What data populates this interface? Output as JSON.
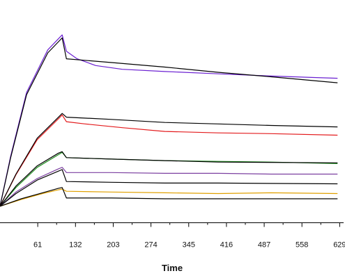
{
  "chart_data": {
    "type": "line",
    "title": "",
    "xlabel": "Time",
    "ylabel": "",
    "xlim": [
      -10,
      639
    ],
    "ylim": [
      0,
      260
    ],
    "xticks": [
      61,
      132,
      203,
      274,
      345,
      416,
      487,
      558,
      629
    ],
    "grid": false,
    "legend": "none",
    "series": [
      {
        "color": "#6a1fd1",
        "points": [
          [
            -10,
            3
          ],
          [
            10,
            70
          ],
          [
            40,
            155
          ],
          [
            80,
            212
          ],
          [
            107,
            232
          ],
          [
            115,
            210
          ],
          [
            135,
            200
          ],
          [
            170,
            191
          ],
          [
            220,
            186
          ],
          [
            300,
            183
          ],
          [
            400,
            180
          ],
          [
            500,
            177
          ],
          [
            580,
            175
          ],
          [
            625,
            174
          ]
        ]
      },
      {
        "color": "#000000",
        "points": [
          [
            -10,
            3
          ],
          [
            10,
            68
          ],
          [
            40,
            152
          ],
          [
            80,
            208
          ],
          [
            107,
            228
          ],
          [
            115,
            200
          ],
          [
            200,
            195
          ],
          [
            300,
            189
          ],
          [
            400,
            182
          ],
          [
            500,
            176
          ],
          [
            625,
            168
          ]
        ]
      },
      {
        "color": "#e31a1c",
        "points": [
          [
            -10,
            3
          ],
          [
            20,
            45
          ],
          [
            60,
            92
          ],
          [
            100,
            120
          ],
          [
            107,
            125
          ],
          [
            115,
            116
          ],
          [
            150,
            113
          ],
          [
            220,
            108
          ],
          [
            300,
            103
          ],
          [
            400,
            101
          ],
          [
            500,
            100
          ],
          [
            625,
            98
          ]
        ]
      },
      {
        "color": "#000000",
        "points": [
          [
            -10,
            3
          ],
          [
            20,
            46
          ],
          [
            60,
            94
          ],
          [
            100,
            122
          ],
          [
            107,
            127
          ],
          [
            115,
            122
          ],
          [
            200,
            119
          ],
          [
            300,
            115
          ],
          [
            400,
            113
          ],
          [
            500,
            111
          ],
          [
            625,
            109
          ]
        ]
      },
      {
        "color": "#1f8f1f",
        "points": [
          [
            -10,
            3
          ],
          [
            20,
            28
          ],
          [
            60,
            55
          ],
          [
            100,
            72
          ],
          [
            107,
            75
          ],
          [
            115,
            68
          ],
          [
            200,
            66
          ],
          [
            300,
            64
          ],
          [
            400,
            63
          ],
          [
            500,
            62
          ],
          [
            625,
            60
          ]
        ]
      },
      {
        "color": "#000000",
        "points": [
          [
            -10,
            3
          ],
          [
            20,
            30
          ],
          [
            60,
            57
          ],
          [
            100,
            74
          ],
          [
            107,
            76
          ],
          [
            115,
            68
          ],
          [
            200,
            66
          ],
          [
            300,
            64
          ],
          [
            400,
            62
          ],
          [
            625,
            61
          ]
        ]
      },
      {
        "color": "#7b3fa0",
        "points": [
          [
            -10,
            3
          ],
          [
            20,
            22
          ],
          [
            60,
            40
          ],
          [
            100,
            53
          ],
          [
            107,
            55
          ],
          [
            115,
            48
          ],
          [
            200,
            48
          ],
          [
            300,
            47
          ],
          [
            400,
            47
          ],
          [
            500,
            46
          ],
          [
            625,
            46
          ]
        ]
      },
      {
        "color": "#000000",
        "points": [
          [
            -10,
            3
          ],
          [
            20,
            20
          ],
          [
            60,
            38
          ],
          [
            100,
            50
          ],
          [
            107,
            52
          ],
          [
            115,
            36
          ],
          [
            200,
            35
          ],
          [
            300,
            34
          ],
          [
            400,
            34
          ],
          [
            625,
            33
          ]
        ]
      },
      {
        "color": "#e0a000",
        "points": [
          [
            -10,
            3
          ],
          [
            30,
            12
          ],
          [
            70,
            20
          ],
          [
            100,
            25
          ],
          [
            107,
            26
          ],
          [
            115,
            23
          ],
          [
            200,
            22
          ],
          [
            300,
            21
          ],
          [
            400,
            20
          ],
          [
            500,
            21
          ],
          [
            625,
            20
          ]
        ]
      },
      {
        "color": "#000000",
        "points": [
          [
            -10,
            3
          ],
          [
            30,
            13
          ],
          [
            70,
            21
          ],
          [
            100,
            27
          ],
          [
            107,
            28
          ],
          [
            115,
            14
          ],
          [
            200,
            14
          ],
          [
            300,
            13
          ],
          [
            400,
            13
          ],
          [
            500,
            13
          ],
          [
            625,
            13
          ]
        ]
      }
    ]
  }
}
